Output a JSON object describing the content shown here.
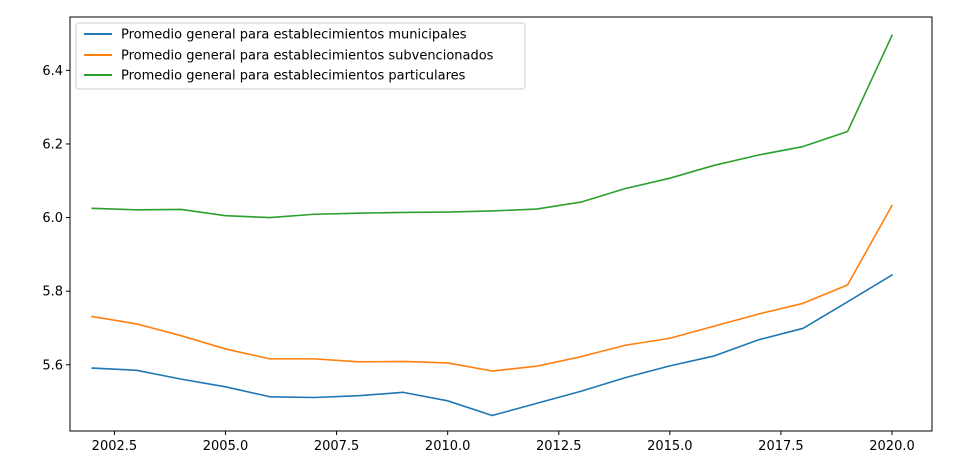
{
  "chart_data": {
    "type": "line",
    "title": "",
    "xlabel": "",
    "ylabel": "",
    "xlim": [
      2001.5,
      2020.9
    ],
    "ylim": [
      5.42,
      6.545
    ],
    "x_ticks": [
      {
        "value": 2002.5,
        "label": "2002.5"
      },
      {
        "value": 2005.0,
        "label": "2005.0"
      },
      {
        "value": 2007.5,
        "label": "2007.5"
      },
      {
        "value": 2010.0,
        "label": "2010.0"
      },
      {
        "value": 2012.5,
        "label": "2012.5"
      },
      {
        "value": 2015.0,
        "label": "2015.0"
      },
      {
        "value": 2017.5,
        "label": "2017.5"
      },
      {
        "value": 2020.0,
        "label": "2020.0"
      }
    ],
    "y_ticks": [
      {
        "value": 5.6,
        "label": "5.6"
      },
      {
        "value": 5.8,
        "label": "5.8"
      },
      {
        "value": 6.0,
        "label": "6.0"
      },
      {
        "value": 6.2,
        "label": "6.2"
      },
      {
        "value": 6.4,
        "label": "6.4"
      }
    ],
    "grid": false,
    "legend_position": "top-left",
    "x": [
      2002,
      2003,
      2004,
      2005,
      2006,
      2007,
      2008,
      2009,
      2010,
      2011,
      2012,
      2013,
      2014,
      2015,
      2016,
      2017,
      2018,
      2019,
      2020
    ],
    "series": [
      {
        "name": "Promedio general para establecimientos municipales",
        "color": "#1f77b4",
        "values": [
          5.591,
          5.585,
          5.561,
          5.54,
          5.513,
          5.511,
          5.516,
          5.525,
          5.502,
          5.462,
          5.495,
          5.528,
          5.565,
          5.597,
          5.624,
          5.668,
          5.699,
          5.771,
          5.844
        ]
      },
      {
        "name": "Promedio general para establecimientos subvencionados",
        "color": "#ff7f0e",
        "values": [
          5.731,
          5.711,
          5.679,
          5.643,
          5.616,
          5.616,
          5.608,
          5.609,
          5.605,
          5.583,
          5.596,
          5.622,
          5.653,
          5.672,
          5.705,
          5.738,
          5.767,
          5.817,
          6.033
        ]
      },
      {
        "name": "Promedio general para establecimientos particulares",
        "color": "#2ca02c",
        "values": [
          6.025,
          6.021,
          6.022,
          6.005,
          6.0,
          6.009,
          6.012,
          6.014,
          6.015,
          6.018,
          6.023,
          6.042,
          6.079,
          6.107,
          6.142,
          6.17,
          6.193,
          6.234,
          6.495
        ]
      }
    ]
  }
}
